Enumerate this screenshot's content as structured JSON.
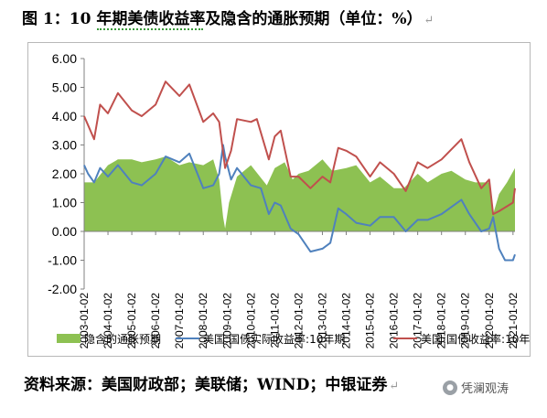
{
  "title": {
    "text": "图 1：10 年期美债收益率及隐含的通胀预期（单位：%）",
    "para_mark": "↵"
  },
  "source": {
    "text": "资料来源：美国财政部；美联储；WIND；中银证券",
    "para_mark": "↵"
  },
  "watermark": {
    "text": "凭澜观涛",
    "icon": "wechat-icon"
  },
  "colors": {
    "breakeven": "#8DC152",
    "real_yield": "#4F81BD",
    "nominal_yield": "#C0504D",
    "axis": "#808080"
  },
  "chart_data": {
    "type": "line+area",
    "title": "",
    "xlabel": "",
    "ylabel": "",
    "ylim": [
      -2.0,
      6.0
    ],
    "yticks": [
      "6.00",
      "5.00",
      "4.00",
      "3.00",
      "2.00",
      "1.00",
      "0.00",
      "-1.00",
      "-2.00"
    ],
    "xlim": [
      "2003-01",
      "2021-02"
    ],
    "xticks": [
      "2003-01-02",
      "2004-01-02",
      "2005-01-02",
      "2006-01-02",
      "2007-01-02",
      "2008-01-02",
      "2009-01-02",
      "2010-01-02",
      "2011-01-02",
      "2012-01-02",
      "2013-01-02",
      "2014-01-02",
      "2015-01-02",
      "2016-01-02",
      "2017-01-02",
      "2018-01-02",
      "2019-01-02",
      "2020-01-02",
      "2021-01-02"
    ],
    "legend_position": "bottom",
    "grid": false,
    "series": [
      {
        "name": "隐含的通胀预期",
        "kind": "area",
        "points": [
          [
            "2003-01",
            1.7
          ],
          [
            "2003-06",
            1.7
          ],
          [
            "2004-01",
            2.3
          ],
          [
            "2004-06",
            2.5
          ],
          [
            "2005-01",
            2.5
          ],
          [
            "2005-06",
            2.4
          ],
          [
            "2006-01",
            2.5
          ],
          [
            "2006-06",
            2.6
          ],
          [
            "2007-01",
            2.3
          ],
          [
            "2007-06",
            2.4
          ],
          [
            "2008-01",
            2.3
          ],
          [
            "2008-06",
            2.5
          ],
          [
            "2008-09",
            1.8
          ],
          [
            "2008-11",
            0.5
          ],
          [
            "2008-12",
            0.1
          ],
          [
            "2009-02",
            1.0
          ],
          [
            "2009-06",
            1.9
          ],
          [
            "2010-01",
            2.3
          ],
          [
            "2010-09",
            1.6
          ],
          [
            "2011-01",
            2.2
          ],
          [
            "2011-06",
            2.4
          ],
          [
            "2011-10",
            1.8
          ],
          [
            "2012-01",
            2.0
          ],
          [
            "2012-06",
            2.1
          ],
          [
            "2013-01",
            2.5
          ],
          [
            "2013-06",
            2.1
          ],
          [
            "2014-01",
            2.2
          ],
          [
            "2014-06",
            2.3
          ],
          [
            "2015-01",
            1.7
          ],
          [
            "2015-06",
            1.9
          ],
          [
            "2016-01",
            1.5
          ],
          [
            "2016-06",
            1.5
          ],
          [
            "2017-01",
            2.0
          ],
          [
            "2017-06",
            1.7
          ],
          [
            "2018-01",
            2.0
          ],
          [
            "2018-06",
            2.1
          ],
          [
            "2019-01",
            1.8
          ],
          [
            "2019-06",
            1.7
          ],
          [
            "2020-01",
            1.7
          ],
          [
            "2020-03",
            0.6
          ],
          [
            "2020-06",
            1.3
          ],
          [
            "2020-10",
            1.7
          ],
          [
            "2021-02",
            2.2
          ]
        ]
      },
      {
        "name": "美国:国债实际收益率:10年期",
        "kind": "line",
        "points": [
          [
            "2003-01",
            2.3
          ],
          [
            "2003-03",
            2.0
          ],
          [
            "2003-06",
            1.7
          ],
          [
            "2003-09",
            2.2
          ],
          [
            "2004-01",
            1.9
          ],
          [
            "2004-06",
            2.3
          ],
          [
            "2005-01",
            1.7
          ],
          [
            "2005-06",
            1.6
          ],
          [
            "2006-01",
            2.0
          ],
          [
            "2006-06",
            2.6
          ],
          [
            "2007-01",
            2.4
          ],
          [
            "2007-06",
            2.7
          ],
          [
            "2008-01",
            1.5
          ],
          [
            "2008-06",
            1.6
          ],
          [
            "2008-09",
            2.0
          ],
          [
            "2008-11",
            3.0
          ],
          [
            "2008-12",
            2.6
          ],
          [
            "2009-03",
            1.8
          ],
          [
            "2009-06",
            2.2
          ],
          [
            "2010-01",
            1.6
          ],
          [
            "2010-06",
            1.5
          ],
          [
            "2010-10",
            0.6
          ],
          [
            "2011-01",
            1.0
          ],
          [
            "2011-04",
            0.9
          ],
          [
            "2011-09",
            0.1
          ],
          [
            "2012-01",
            -0.1
          ],
          [
            "2012-07",
            -0.7
          ],
          [
            "2013-01",
            -0.6
          ],
          [
            "2013-05",
            -0.4
          ],
          [
            "2013-09",
            0.8
          ],
          [
            "2014-01",
            0.6
          ],
          [
            "2014-06",
            0.3
          ],
          [
            "2015-01",
            0.2
          ],
          [
            "2015-06",
            0.5
          ],
          [
            "2016-01",
            0.5
          ],
          [
            "2016-07",
            0.0
          ],
          [
            "2017-01",
            0.4
          ],
          [
            "2017-06",
            0.4
          ],
          [
            "2018-01",
            0.6
          ],
          [
            "2018-11",
            1.1
          ],
          [
            "2019-03",
            0.6
          ],
          [
            "2019-09",
            0.0
          ],
          [
            "2020-01",
            0.1
          ],
          [
            "2020-03",
            0.5
          ],
          [
            "2020-06",
            -0.6
          ],
          [
            "2020-09",
            -1.0
          ],
          [
            "2021-01",
            -1.0
          ],
          [
            "2021-02",
            -0.8
          ]
        ]
      },
      {
        "name": "美国:国债收益率:10年",
        "kind": "line",
        "points": [
          [
            "2003-01",
            4.0
          ],
          [
            "2003-06",
            3.2
          ],
          [
            "2003-09",
            4.4
          ],
          [
            "2004-01",
            4.1
          ],
          [
            "2004-06",
            4.8
          ],
          [
            "2005-01",
            4.2
          ],
          [
            "2005-06",
            4.0
          ],
          [
            "2006-01",
            4.4
          ],
          [
            "2006-06",
            5.2
          ],
          [
            "2007-01",
            4.7
          ],
          [
            "2007-06",
            5.1
          ],
          [
            "2008-01",
            3.8
          ],
          [
            "2008-06",
            4.1
          ],
          [
            "2008-09",
            3.8
          ],
          [
            "2008-12",
            2.2
          ],
          [
            "2009-03",
            2.8
          ],
          [
            "2009-06",
            3.9
          ],
          [
            "2010-01",
            3.8
          ],
          [
            "2010-04",
            3.9
          ],
          [
            "2010-10",
            2.5
          ],
          [
            "2011-01",
            3.3
          ],
          [
            "2011-04",
            3.5
          ],
          [
            "2011-09",
            1.9
          ],
          [
            "2012-01",
            1.9
          ],
          [
            "2012-07",
            1.5
          ],
          [
            "2013-01",
            1.9
          ],
          [
            "2013-05",
            1.7
          ],
          [
            "2013-09",
            2.9
          ],
          [
            "2014-01",
            2.8
          ],
          [
            "2014-06",
            2.6
          ],
          [
            "2015-01",
            1.9
          ],
          [
            "2015-06",
            2.4
          ],
          [
            "2016-01",
            2.0
          ],
          [
            "2016-07",
            1.4
          ],
          [
            "2017-01",
            2.4
          ],
          [
            "2017-06",
            2.2
          ],
          [
            "2018-01",
            2.5
          ],
          [
            "2018-11",
            3.2
          ],
          [
            "2019-03",
            2.4
          ],
          [
            "2019-09",
            1.5
          ],
          [
            "2020-01",
            1.8
          ],
          [
            "2020-03",
            0.6
          ],
          [
            "2020-06",
            0.7
          ],
          [
            "2021-01",
            1.0
          ],
          [
            "2021-02",
            1.5
          ]
        ]
      }
    ]
  }
}
